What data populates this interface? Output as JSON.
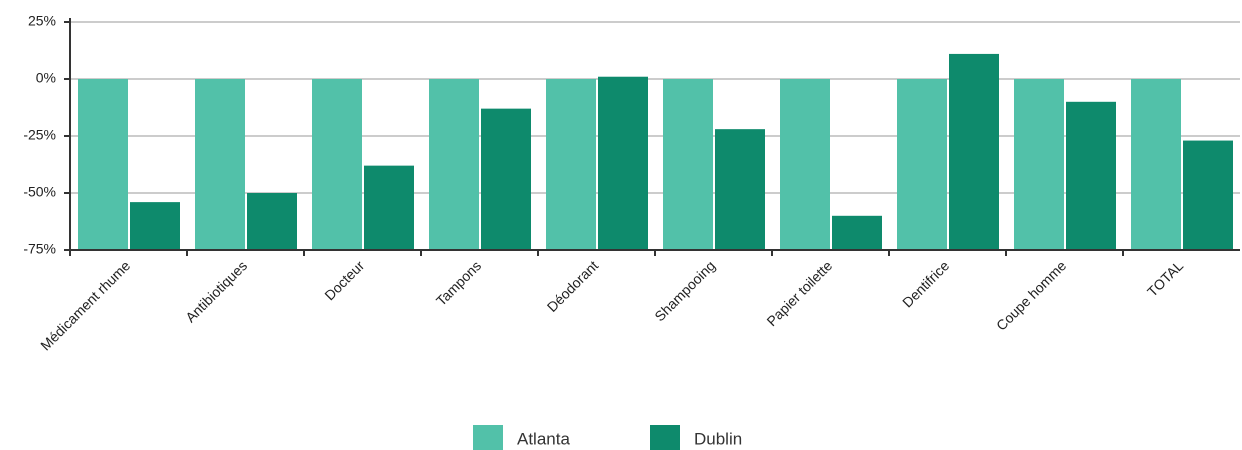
{
  "chart_data": {
    "type": "bar",
    "categories": [
      "Médicament rhume",
      "Antibiotiques",
      "Docteur",
      "Tampons",
      "Déodorant",
      "Shampooing",
      "Papier toilette",
      "Dentifrice",
      "Coupe homme",
      "TOTAL"
    ],
    "series": [
      {
        "name": "Atlanta",
        "color": "#52c1a9",
        "values": [
          0,
          0,
          0,
          0,
          0,
          0,
          0,
          0,
          0,
          0
        ]
      },
      {
        "name": "Dublin",
        "color": "#0e8a6c",
        "values": [
          -54,
          -50,
          -38,
          -13,
          1,
          -22,
          -60,
          11,
          -10,
          -27
        ]
      }
    ],
    "ylim": [
      -75,
      25
    ],
    "yticks": [
      {
        "value": -75,
        "label": "-75%"
      },
      {
        "value": -50,
        "label": "-50%"
      },
      {
        "value": -25,
        "label": "-25%"
      },
      {
        "value": 0,
        "label": "0%"
      },
      {
        "value": 25,
        "label": "25%"
      }
    ],
    "grid": true,
    "legend": "bottom"
  }
}
